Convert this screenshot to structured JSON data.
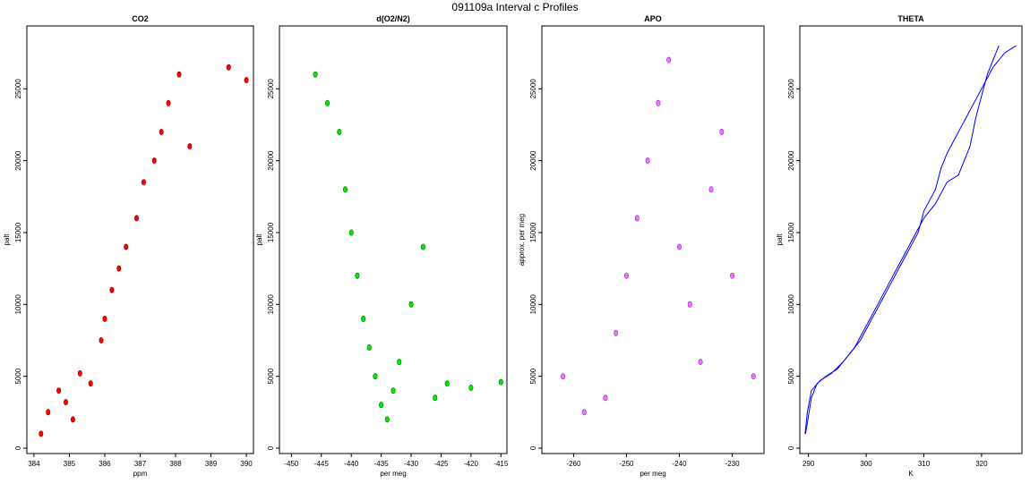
{
  "page_title": "091109a   Interval c Profiles",
  "colors": {
    "co2": "#ff0000",
    "co2_dark": "#8b0000",
    "o2": "#00ee00",
    "o2_dark": "#006400",
    "apo": "#ee77ee",
    "apo_dark": "#a020f0",
    "theta": "#0000ff"
  },
  "chart_data": [
    {
      "type": "scatter",
      "title": "CO2",
      "xlabel": "ppm",
      "ylabel": "palt",
      "xlim": [
        383.8,
        390.2
      ],
      "ylim": [
        0,
        29000
      ],
      "xticks": [
        384,
        385,
        386,
        387,
        388,
        389,
        390
      ],
      "yticks": [
        0,
        5000,
        10000,
        15000,
        20000,
        25000
      ],
      "series": [
        {
          "x": [
            384.2,
            384.4,
            384.7,
            384.9,
            385.1,
            385.3,
            385.6,
            385.9,
            386.0,
            386.2,
            386.4,
            386.6,
            386.9,
            387.1,
            387.4,
            387.6,
            387.8,
            388.1,
            388.4,
            389.5,
            390.0
          ],
          "y": [
            1000,
            2500,
            4000,
            3200,
            2000,
            5200,
            4500,
            7500,
            9000,
            11000,
            12500,
            14000,
            16000,
            18500,
            20000,
            22000,
            24000,
            26000,
            21000,
            26500,
            25600
          ]
        }
      ]
    },
    {
      "type": "scatter",
      "title": "d(O2/N2)",
      "xlabel": "per meg",
      "ylabel": "palt",
      "xlim": [
        -452,
        -414
      ],
      "ylim": [
        0,
        29000
      ],
      "xticks": [
        -450,
        -445,
        -440,
        -435,
        -430,
        -425,
        -420,
        -415
      ],
      "yticks": [
        0,
        5000,
        10000,
        15000,
        20000,
        25000
      ],
      "series": [
        {
          "x": [
            -446,
            -444,
            -442,
            -441,
            -440,
            -439,
            -438,
            -437,
            -436,
            -435,
            -434,
            -433,
            -432,
            -430,
            -428,
            -426,
            -424,
            -420,
            -415
          ],
          "y": [
            26000,
            24000,
            22000,
            18000,
            15000,
            12000,
            9000,
            7000,
            5000,
            3000,
            2000,
            4000,
            6000,
            10000,
            14000,
            3500,
            4500,
            4200,
            4600
          ]
        }
      ]
    },
    {
      "type": "scatter",
      "title": "APO",
      "xlabel": "per meg",
      "ylabel": "approx. per meg",
      "xlim": [
        -266,
        -224
      ],
      "ylim": [
        0,
        29000
      ],
      "xticks": [
        -260,
        -250,
        -240,
        -230
      ],
      "yticks": [
        0,
        5000,
        10000,
        15000,
        20000,
        25000
      ],
      "series": [
        {
          "x": [
            -262,
            -258,
            -254,
            -252,
            -250,
            -248,
            -246,
            -244,
            -242,
            -240,
            -238,
            -236,
            -234,
            -232,
            -230,
            -226
          ],
          "y": [
            5000,
            2500,
            3500,
            8000,
            12000,
            16000,
            20000,
            24000,
            27000,
            14000,
            10000,
            6000,
            18000,
            22000,
            12000,
            5000
          ]
        }
      ]
    },
    {
      "type": "line",
      "title": "THETA",
      "xlabel": "K",
      "ylabel": "palt",
      "xlim": [
        288.5,
        327
      ],
      "ylim": [
        0,
        29000
      ],
      "xticks": [
        290,
        300,
        310,
        320
      ],
      "yticks": [
        0,
        5000,
        10000,
        15000,
        20000,
        25000
      ],
      "series": [
        {
          "x": [
            289.5,
            290.5,
            291.5,
            293,
            295,
            297,
            299,
            301,
            303,
            305,
            307,
            309,
            310,
            312,
            313,
            314,
            316,
            318,
            320,
            322,
            324,
            326
          ],
          "y": [
            1000,
            3500,
            4500,
            5000,
            5500,
            6500,
            7500,
            9000,
            10500,
            12000,
            13500,
            15000,
            16500,
            18000,
            19500,
            20500,
            22000,
            23500,
            25000,
            26500,
            27500,
            28000
          ]
        },
        {
          "x": [
            289.4,
            289.8,
            290.5,
            292,
            294,
            296,
            298,
            300,
            302,
            304,
            306,
            308,
            310,
            312,
            314,
            316,
            318,
            319,
            320,
            321,
            322,
            323
          ],
          "y": [
            1000,
            2500,
            4000,
            4700,
            5200,
            6000,
            7000,
            8500,
            10000,
            11500,
            13000,
            14500,
            16000,
            17000,
            18500,
            19000,
            21000,
            23000,
            24500,
            26000,
            27000,
            28000
          ]
        }
      ]
    }
  ]
}
